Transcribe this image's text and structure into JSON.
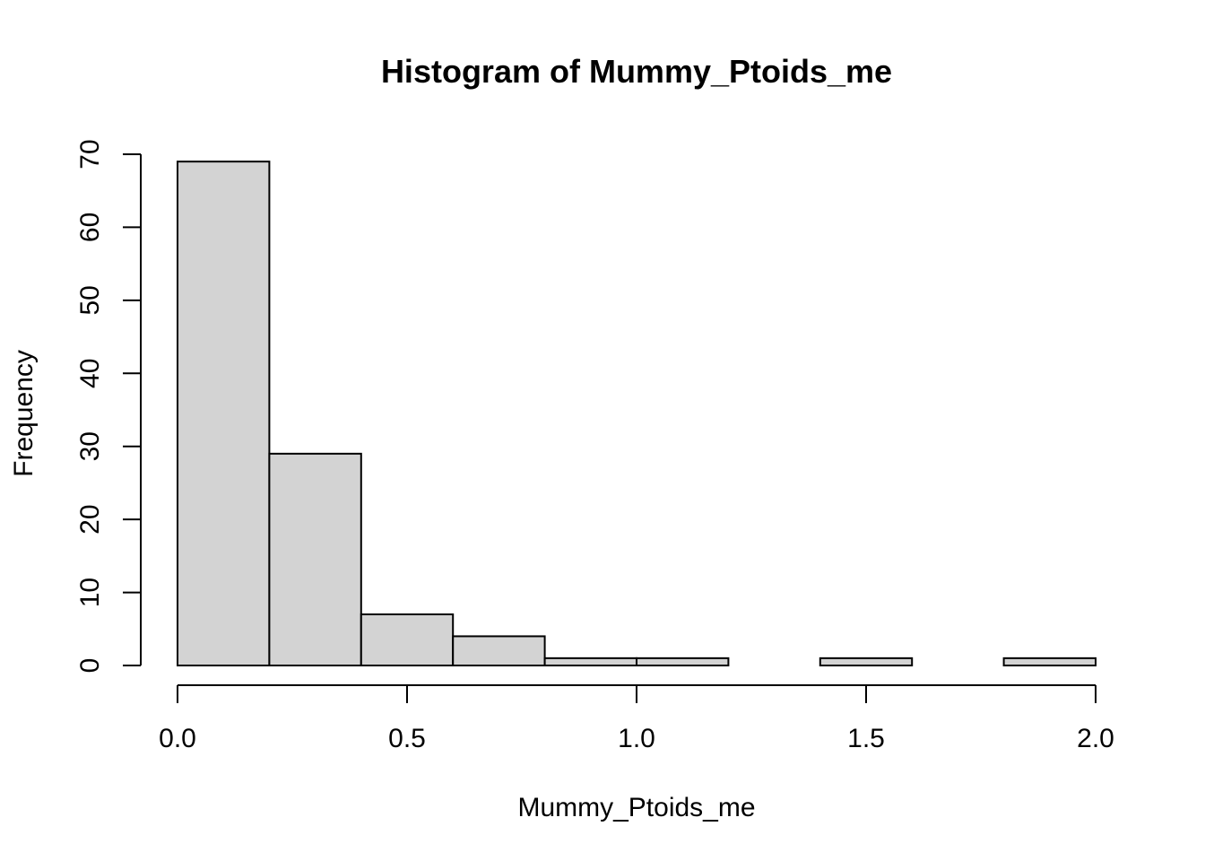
{
  "chart_data": {
    "type": "histogram",
    "title": "Histogram of Mummy_Ptoids_me",
    "xlabel": "Mummy_Ptoids_me",
    "ylabel": "Frequency",
    "bin_edges": [
      0.0,
      0.2,
      0.4,
      0.6,
      0.8,
      1.0,
      1.2,
      1.4,
      1.6,
      1.8,
      2.0
    ],
    "counts": [
      69,
      29,
      7,
      4,
      1,
      1,
      0,
      1,
      0,
      1
    ],
    "xlim": [
      0.0,
      2.0
    ],
    "ylim": [
      0,
      70
    ],
    "x_ticks": [
      0.0,
      0.5,
      1.0,
      1.5,
      2.0
    ],
    "x_tick_labels": [
      "0.0",
      "0.5",
      "1.0",
      "1.5",
      "2.0"
    ],
    "y_ticks": [
      0,
      10,
      20,
      30,
      40,
      50,
      60,
      70
    ],
    "y_tick_labels": [
      "0",
      "10",
      "20",
      "30",
      "40",
      "50",
      "60",
      "70"
    ],
    "bar_color": "#d3d3d3",
    "grid": false,
    "legend": "none"
  }
}
